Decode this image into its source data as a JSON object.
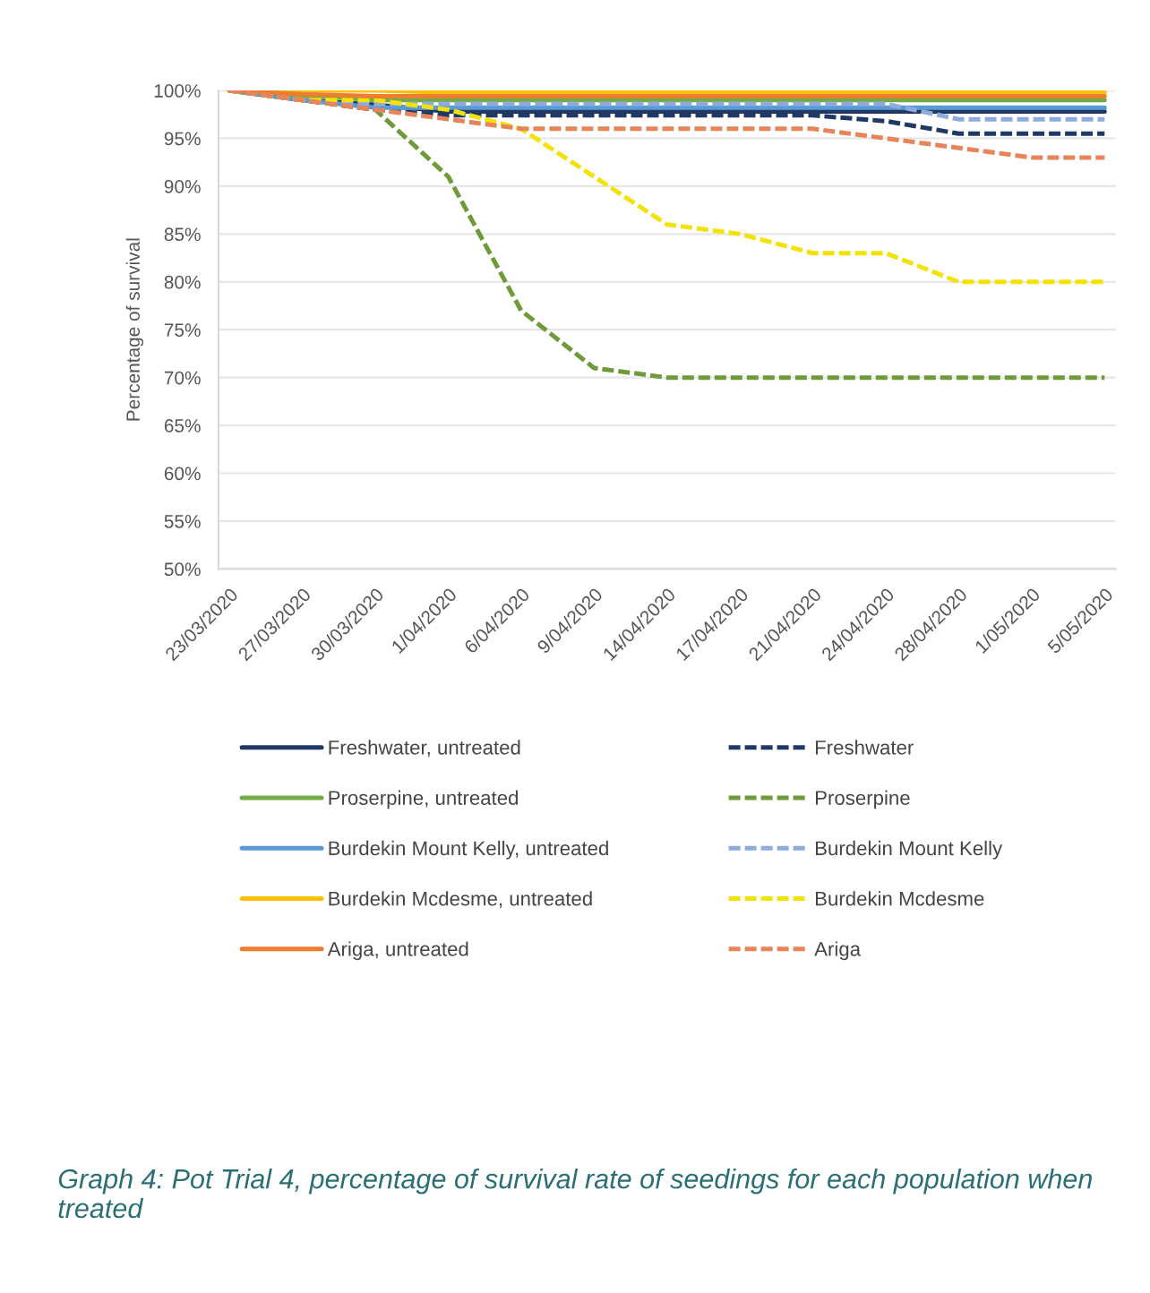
{
  "chart_data": {
    "type": "line",
    "ylabel": "Percentage of survival",
    "categories": [
      "23/03/2020",
      "27/03/2020",
      "30/03/2020",
      "1/04/2020",
      "6/04/2020",
      "9/04/2020",
      "14/04/2020",
      "17/04/2020",
      "21/04/2020",
      "24/04/2020",
      "28/04/2020",
      "1/05/2020",
      "5/05/2020"
    ],
    "ylim": [
      50,
      100
    ],
    "yticks": [
      {
        "value": 50,
        "label": "50%"
      },
      {
        "value": 55,
        "label": "55%"
      },
      {
        "value": 60,
        "label": "60%"
      },
      {
        "value": 65,
        "label": "65%"
      },
      {
        "value": 70,
        "label": "70%"
      },
      {
        "value": 75,
        "label": "75%"
      },
      {
        "value": 80,
        "label": "80%"
      },
      {
        "value": 85,
        "label": "85%"
      },
      {
        "value": 90,
        "label": "90%"
      },
      {
        "value": 95,
        "label": "95%"
      },
      {
        "value": 100,
        "label": "100%"
      }
    ],
    "grid": "y",
    "legend": "bottom",
    "marker": "none",
    "series": [
      {
        "name": "Freshwater, untreated",
        "color": "#1f3864",
        "line_style": "solid",
        "values": [
          100,
          99,
          98.5,
          97.8,
          97.8,
          97.8,
          97.8,
          97.8,
          97.8,
          97.8,
          97.8,
          97.8,
          97.8
        ]
      },
      {
        "name": "Freshwater",
        "color": "#1f3864",
        "line_style": "dashed",
        "values": [
          100,
          99,
          98,
          97.4,
          97.4,
          97.4,
          97.4,
          97.4,
          97.4,
          96.8,
          95.5,
          95.5,
          95.5
        ]
      },
      {
        "name": "Proserpine, untreated",
        "color": "#70ad47",
        "line_style": "solid",
        "values": [
          100,
          99.5,
          99,
          99,
          99,
          99,
          99,
          99,
          99,
          99,
          99,
          99,
          99
        ]
      },
      {
        "name": "Proserpine",
        "color": "#6f9a3a",
        "line_style": "dashed",
        "values": [
          100,
          99,
          98,
          91,
          77,
          71,
          70,
          70,
          70,
          70,
          70,
          70,
          70
        ]
      },
      {
        "name": "Burdekin Mount Kelly, untreated",
        "color": "#5b9bd5",
        "line_style": "solid",
        "values": [
          100,
          99,
          98.2,
          98.2,
          98.2,
          98.2,
          98.2,
          98.2,
          98.2,
          98.2,
          98.2,
          98.2,
          98.2
        ]
      },
      {
        "name": "Burdekin Mount Kelly",
        "color": "#8faadc",
        "line_style": "dashed",
        "values": [
          100,
          99,
          98.6,
          98.6,
          98.6,
          98.6,
          98.6,
          98.6,
          98.6,
          98.6,
          97,
          97,
          97
        ]
      },
      {
        "name": "Burdekin Mcdesme, untreated",
        "color": "#ffc000",
        "line_style": "solid",
        "values": [
          100,
          100,
          100,
          99.8,
          99.8,
          99.8,
          99.8,
          99.8,
          99.8,
          99.8,
          99.8,
          99.8,
          99.8
        ]
      },
      {
        "name": "Burdekin Mcdesme",
        "color": "#f2e205",
        "line_style": "dashed",
        "values": [
          100,
          99,
          99,
          98,
          96,
          91,
          86,
          85,
          83,
          83,
          80,
          80,
          80
        ]
      },
      {
        "name": "Ariga, untreated",
        "color": "#ed7d31",
        "line_style": "solid",
        "values": [
          100,
          99.6,
          99.4,
          99.4,
          99.4,
          99.4,
          99.4,
          99.4,
          99.4,
          99.4,
          99.4,
          99.4,
          99.4
        ]
      },
      {
        "name": "Ariga",
        "color": "#e8845a",
        "line_style": "dashed",
        "values": [
          100,
          99,
          98,
          97,
          96,
          96,
          96,
          96,
          96,
          95,
          94,
          93,
          93
        ]
      }
    ],
    "annotations": [
      "Graph 4: Pot Trial 4, percentage of survival rate of seedings for each population when treated"
    ]
  }
}
